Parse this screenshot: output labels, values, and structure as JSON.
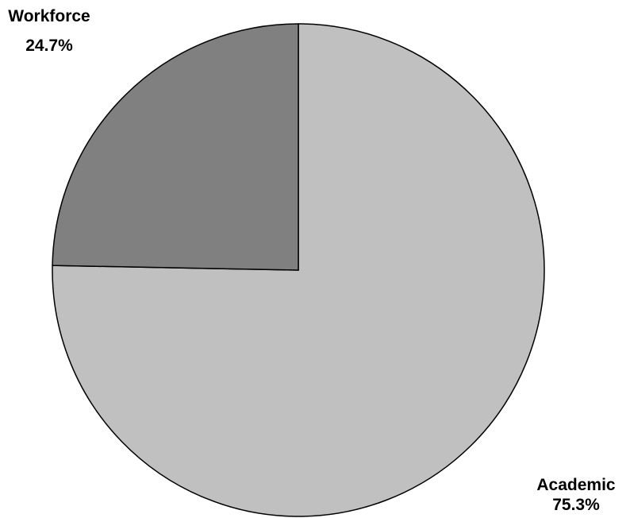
{
  "chart_data": {
    "type": "pie",
    "categories": [
      "Academic",
      "Workforce"
    ],
    "values": [
      75.3,
      24.7
    ],
    "labels": [
      "75.3%",
      "24.7%"
    ],
    "colors": [
      "#c0c0c0",
      "#808080"
    ],
    "title": "",
    "legend": "none"
  }
}
